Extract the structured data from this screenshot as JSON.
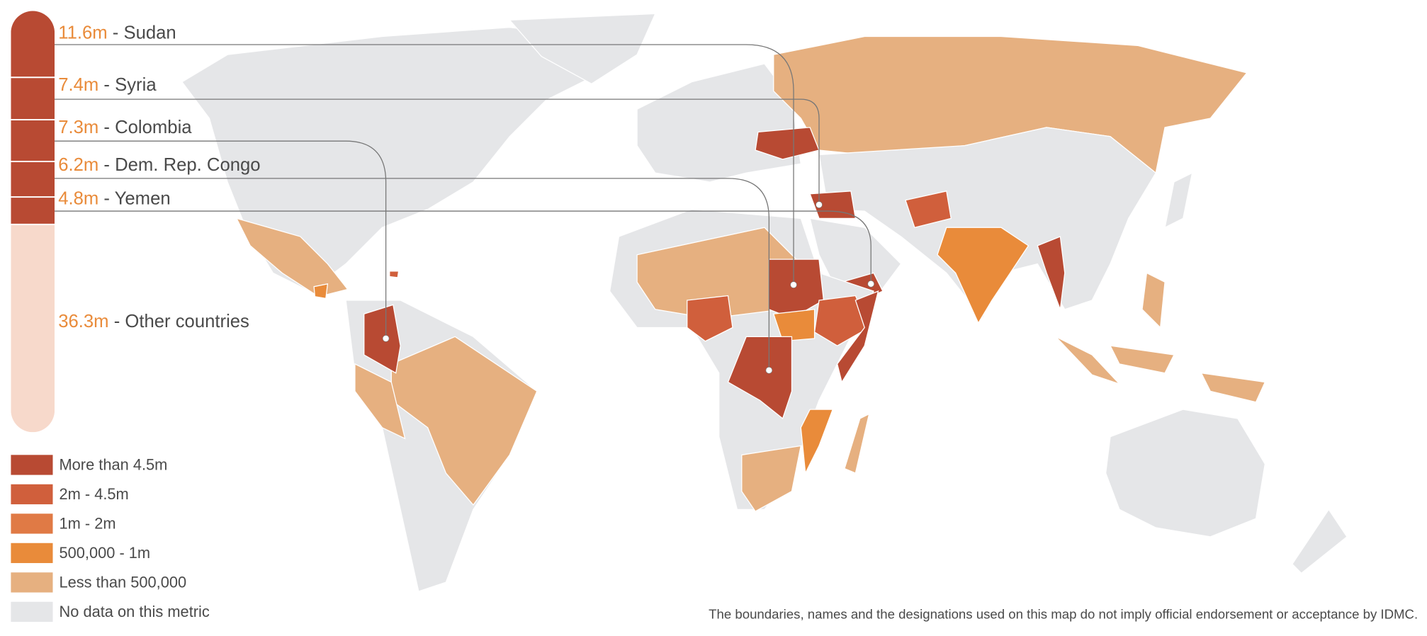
{
  "distribution": {
    "segments": [
      {
        "value": 11.6,
        "value_label": "11.6m",
        "label": "- Sudan",
        "color": "#b84a33"
      },
      {
        "value": 7.4,
        "value_label": "7.4m",
        "label": "- Syria",
        "color": "#b84a33"
      },
      {
        "value": 7.3,
        "value_label": "7.3m",
        "label": "- Colombia",
        "color": "#b84a33"
      },
      {
        "value": 6.2,
        "value_label": "6.2m",
        "label": "- Dem. Rep. Congo",
        "color": "#b84a33"
      },
      {
        "value": 4.8,
        "value_label": "4.8m",
        "label": "- Yemen",
        "color": "#b84a33"
      },
      {
        "value": 36.3,
        "value_label": "36.3m",
        "label": "- Other countries",
        "color": "#f7d9cb"
      }
    ]
  },
  "legend": [
    {
      "label": "More than 4.5m",
      "color": "#b84a33"
    },
    {
      "label": "2m - 4.5m",
      "color": "#d05f3c"
    },
    {
      "label": "1m - 2m",
      "color": "#e07a45"
    },
    {
      "label": "500,000 - 1m",
      "color": "#e98b3a"
    },
    {
      "label": "Less than 500,000",
      "color": "#e6b080"
    },
    {
      "label": "No data on this metric",
      "color": "#e5e6e8"
    }
  ],
  "footnote": "The boundaries, names and the designations used on this map do not imply official endorsement or acceptance by IDMC."
}
